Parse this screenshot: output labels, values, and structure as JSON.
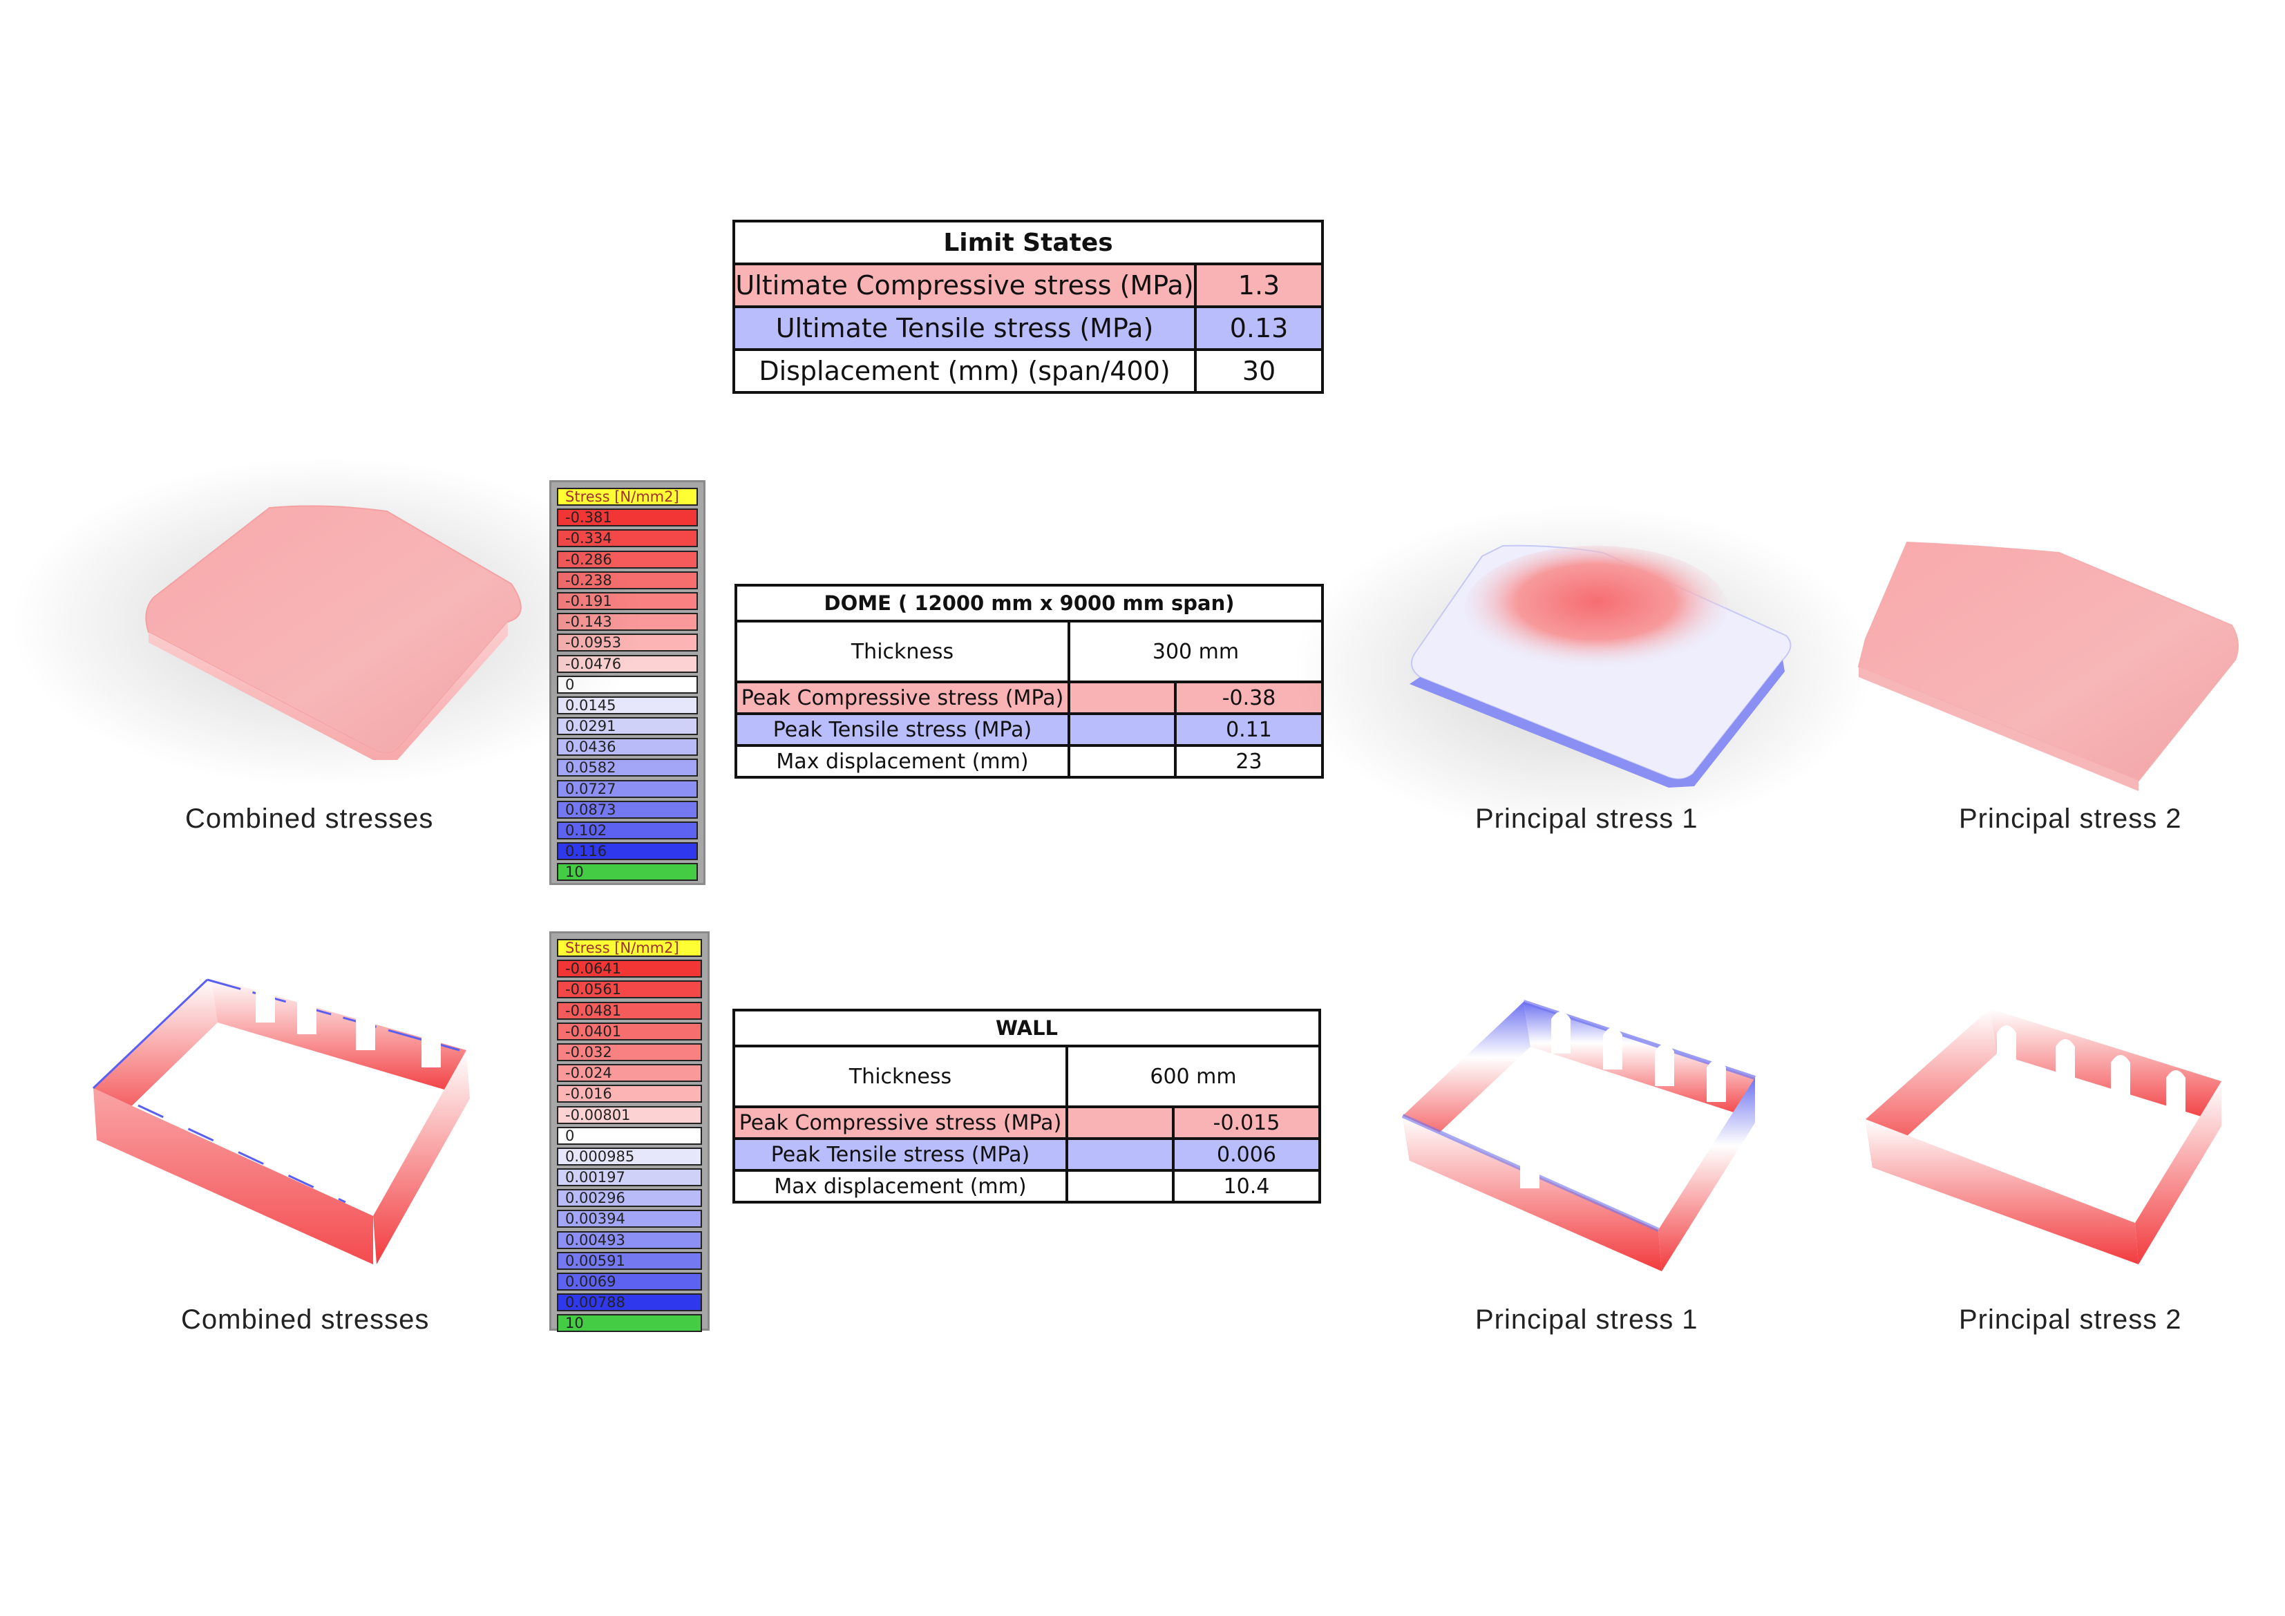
{
  "limit_states": {
    "title": "Limit States",
    "rows": [
      {
        "label": "Ultimate Compressive stress (MPa)",
        "value": "1.3"
      },
      {
        "label": "Ultimate Tensile stress (MPa)",
        "value": "0.13"
      },
      {
        "label": "Displacement (mm) (span/400)",
        "value": "30"
      }
    ]
  },
  "dome": {
    "title": "DOME ( 12000 mm x 9000 mm span)",
    "thickness_label": "Thickness",
    "thickness_value": "300 mm",
    "rows": [
      {
        "label": "Peak Compressive stress (MPa)",
        "value": "-0.38"
      },
      {
        "label": "Peak Tensile stress (MPa)",
        "value": "0.11"
      },
      {
        "label": "Max displacement (mm)",
        "value": "23"
      }
    ],
    "captions": {
      "combined": "Combined stresses",
      "principal1": "Principal stress 1",
      "principal2": "Principal stress 2"
    },
    "legend": {
      "header": "Stress [N/mm2]",
      "values": [
        "-0.381",
        "-0.334",
        "-0.286",
        "-0.238",
        "-0.191",
        "-0.143",
        "-0.0953",
        "-0.0476",
        "0",
        "0.0145",
        "0.0291",
        "0.0436",
        "0.0582",
        "0.0727",
        "0.0873",
        "0.102",
        "0.116",
        "10"
      ],
      "colors": [
        "#f23535",
        "#f44848",
        "#f55b5b",
        "#f76e6e",
        "#f98181",
        "#fa9999",
        "#fcb4b4",
        "#fdd2d2",
        "#ffffff",
        "#e6e7fb",
        "#d0d1f9",
        "#b9bbf8",
        "#a3a6f6",
        "#8c90f4",
        "#7479f2",
        "#5d63f0",
        "#2f38ec",
        "#44cc44"
      ]
    }
  },
  "wall": {
    "title": "WALL",
    "thickness_label": "Thickness",
    "thickness_value": "600 mm",
    "rows": [
      {
        "label": "Peak Compressive stress (MPa)",
        "value": "-0.015"
      },
      {
        "label": "Peak Tensile stress (MPa)",
        "value": "0.006"
      },
      {
        "label": "Max displacement (mm)",
        "value": "10.4"
      }
    ],
    "captions": {
      "combined": "Combined stresses",
      "principal1": "Principal stress 1",
      "principal2": "Principal stress 2"
    },
    "legend": {
      "header": "Stress [N/mm2]",
      "values": [
        "-0.0641",
        "-0.0561",
        "-0.0481",
        "-0.0401",
        "-0.032",
        "-0.024",
        "-0.016",
        "-0.00801",
        "0",
        "0.000985",
        "0.00197",
        "0.00296",
        "0.00394",
        "0.00493",
        "0.00591",
        "0.0069",
        "0.00788",
        "10"
      ],
      "colors": [
        "#f23535",
        "#f44848",
        "#f55b5b",
        "#f76e6e",
        "#f98181",
        "#fa9999",
        "#fcb4b4",
        "#fdd2d2",
        "#ffffff",
        "#e6e7fb",
        "#d0d1f9",
        "#b9bbf8",
        "#a3a6f6",
        "#8c90f4",
        "#7479f2",
        "#5d63f0",
        "#2f38ec",
        "#44cc44"
      ]
    }
  },
  "colors": {
    "compressive": "#f9b3b5",
    "tensile": "#babdfb",
    "legend_header": "#ffff33"
  }
}
